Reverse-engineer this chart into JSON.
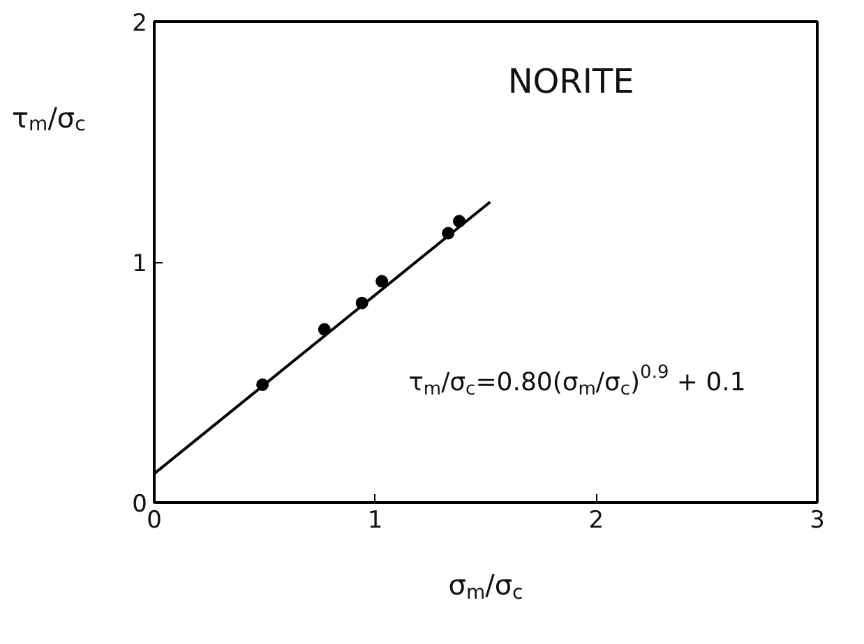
{
  "chart_data": {
    "type": "scatter",
    "xlabel": "σ$_{m}$/σ$_{c}$",
    "ylabel": "τ$_{m}$/σ$_{c}$",
    "annotations": [
      "NORITE",
      "τ$_{m}$/σ$_{c}$=0.80(σ$_{m}$/σ$_{c}$)$^{0.9}$ + 0.1"
    ],
    "series": [
      {
        "color": "#000000",
        "marker": "circle",
        "x": [
          0.49,
          0.77,
          0.94,
          1.03,
          1.33,
          1.38
        ],
        "values": [
          0.49,
          0.72,
          0.83,
          0.92,
          1.12,
          1.17
        ]
      },
      {
        "type": "line",
        "color": "#000000",
        "marker": "none",
        "line_style": "solid",
        "x": [
          0,
          1.52
        ],
        "values": [
          0.12,
          1.25
        ]
      }
    ],
    "xlim": [
      0,
      3
    ],
    "ylim": [
      0,
      2
    ],
    "xticks": [
      0,
      1,
      2,
      3
    ],
    "yticks": [
      0,
      1,
      2
    ],
    "grid": false
  }
}
